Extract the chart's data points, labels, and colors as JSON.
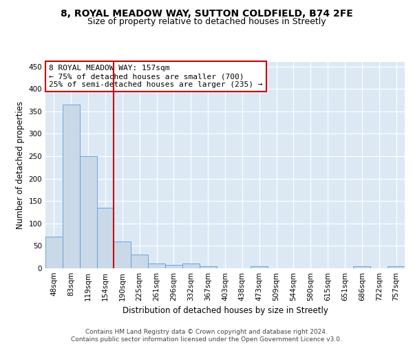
{
  "title1": "8, ROYAL MEADOW WAY, SUTTON COLDFIELD, B74 2FE",
  "title2": "Size of property relative to detached houses in Streetly",
  "xlabel": "Distribution of detached houses by size in Streetly",
  "ylabel": "Number of detached properties",
  "bar_labels": [
    "48sqm",
    "83sqm",
    "119sqm",
    "154sqm",
    "190sqm",
    "225sqm",
    "261sqm",
    "296sqm",
    "332sqm",
    "367sqm",
    "403sqm",
    "438sqm",
    "473sqm",
    "509sqm",
    "544sqm",
    "580sqm",
    "615sqm",
    "651sqm",
    "686sqm",
    "722sqm",
    "757sqm"
  ],
  "bar_heights": [
    70,
    365,
    250,
    135,
    60,
    30,
    10,
    8,
    10,
    5,
    0,
    0,
    4,
    0,
    0,
    0,
    0,
    0,
    4,
    0,
    4
  ],
  "bar_color": "#c9d9e8",
  "bar_edgecolor": "#5b9bd5",
  "vline_position": 3.5,
  "vline_color": "#cc0000",
  "annotation_line1": "8 ROYAL MEADOW WAY: 157sqm",
  "annotation_line2": "← 75% of detached houses are smaller (700)",
  "annotation_line3": "25% of semi-detached houses are larger (235) →",
  "annotation_box_color": "#cc0000",
  "ylim": [
    0,
    460
  ],
  "yticks": [
    0,
    50,
    100,
    150,
    200,
    250,
    300,
    350,
    400,
    450
  ],
  "background_color": "#dce9f5",
  "grid_color": "#ffffff",
  "footer_text": "Contains HM Land Registry data © Crown copyright and database right 2024.\nContains public sector information licensed under the Open Government Licence v3.0.",
  "title1_fontsize": 10,
  "title2_fontsize": 9,
  "xlabel_fontsize": 8.5,
  "ylabel_fontsize": 8.5,
  "tick_fontsize": 7.5,
  "annotation_fontsize": 8,
  "footer_fontsize": 6.5
}
